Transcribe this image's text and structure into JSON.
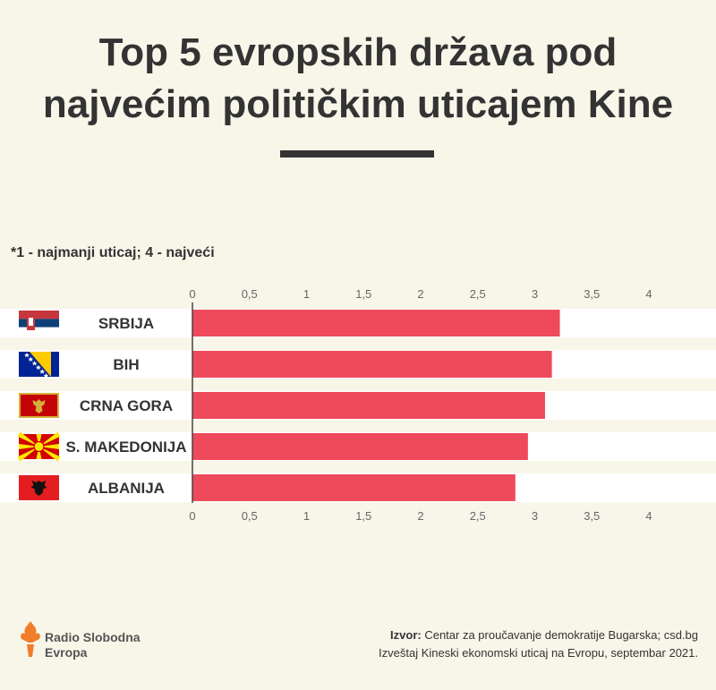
{
  "title_line1": "Top 5 evropskih država pod",
  "title_line2": "najvećim političkim uticajem Kine",
  "note": "*1 - najmanji uticaj; 4 - najveći",
  "colors": {
    "bar": "#ee4a5b",
    "background": "#f8f6e9",
    "row_band": "#ffffff",
    "text": "#333333"
  },
  "chart_data": {
    "type": "bar",
    "orientation": "horizontal",
    "categories": [
      "SRBIJA",
      "BIH",
      "CRNA GORA",
      "S. MAKEDONIJA",
      "ALBANIJA"
    ],
    "values": [
      3.22,
      3.15,
      3.09,
      2.94,
      2.83
    ],
    "flags": [
      "serbia-flag-icon",
      "bih-flag-icon",
      "montenegro-flag-icon",
      "north-macedonia-flag-icon",
      "albania-flag-icon"
    ],
    "ticks": [
      "0",
      "0,5",
      "1",
      "1,5",
      "2",
      "2,5",
      "3",
      "3,5",
      "4"
    ],
    "xlim": [
      0,
      4
    ],
    "axis_position": "top and bottom",
    "grid": false
  },
  "source": {
    "label": "Izvor:",
    "line1": "Centar za proučavanje demokratije Bugarska; csd.bg",
    "line2": "Izveštaj Kineski ekonomski uticaj na Evropu, septembar 2021."
  },
  "logo": {
    "line1": "Radio Slobodna",
    "line2": "Evropa"
  }
}
